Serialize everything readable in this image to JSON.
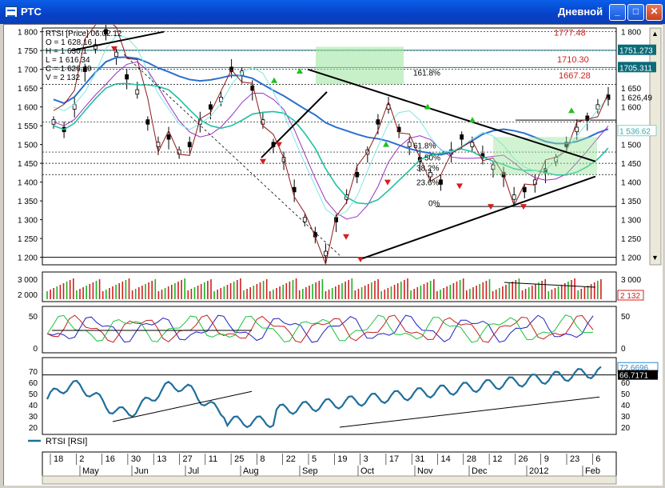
{
  "window": {
    "title": "РТС",
    "mode": "Дневной"
  },
  "price_panel": {
    "legend": [
      "RTSI [Price] 06.02.12",
      "O = 1 628,16",
      "H = 1 630,1",
      "L = 1 616,34",
      "C = 1 626,49",
      "V = 2 132"
    ],
    "y_ticks": [
      "1 800",
      "1 750",
      "1 700",
      "1 650",
      "1 600",
      "1 550",
      "1 500",
      "1 450",
      "1 400",
      "1 350",
      "1 300",
      "1 250",
      "1 200"
    ],
    "right_values": [
      {
        "text": "1 800",
        "style": "plain"
      },
      {
        "text": "1751.273",
        "style": "teal"
      },
      {
        "text": "1705.311",
        "style": "teal"
      },
      {
        "text": "1 650",
        "style": "plain"
      },
      {
        "text": "1 626,49",
        "style": "plain"
      },
      {
        "text": "1 600",
        "style": "plain"
      },
      {
        "text": "1 536.62",
        "style": "light"
      },
      {
        "text": "1 500",
        "style": "plain"
      },
      {
        "text": "1 450",
        "style": "plain"
      },
      {
        "text": "1 400",
        "style": "plain"
      },
      {
        "text": "1 350",
        "style": "plain"
      },
      {
        "text": "1 300",
        "style": "plain"
      },
      {
        "text": "1 250",
        "style": "plain"
      },
      {
        "text": "1 200",
        "style": "plain"
      }
    ],
    "annotations": [
      "1777.48",
      "1710.30",
      "1667.28",
      "161.8%",
      "61.8%",
      "50%",
      "38.2%",
      "23.6%",
      "0%"
    ]
  },
  "volume_panel": {
    "y_ticks": [
      "3 000",
      "2 000"
    ],
    "right_values": [
      "3 000",
      "2 132"
    ]
  },
  "osc_panel": {
    "y_ticks": [
      "50",
      "0"
    ],
    "right_values": [
      "50",
      "0"
    ]
  },
  "rsi_panel": {
    "y_ticks": [
      "70",
      "60",
      "50",
      "40",
      "30",
      "20"
    ],
    "right_values": [
      "72.6696",
      "66.7171",
      "60",
      "50",
      "40",
      "30",
      "20"
    ],
    "legend": "RTSI [RSI]"
  },
  "time_axis": {
    "days": [
      "18",
      "2",
      "16",
      "30",
      "13",
      "27",
      "11",
      "25",
      "8",
      "22",
      "5",
      "19",
      "3",
      "17",
      "31",
      "14",
      "28",
      "12",
      "26",
      "9",
      "23",
      "6"
    ],
    "months": [
      "May",
      "Jun",
      "Jul",
      "Aug",
      "Sep",
      "Oct",
      "Nov",
      "Dec",
      "2012",
      "Feb"
    ]
  },
  "colors": {
    "accent": "#0a5ee8",
    "teal_badge": "#0b6b78",
    "red_text": "#cc2020"
  },
  "icons": [
    "app-icon",
    "minimize-icon",
    "maximize-icon",
    "close-icon"
  ],
  "chart_data": {
    "type": "line",
    "title": "RTSI [Price] 06.02.12",
    "ylim": [
      1180,
      1810
    ],
    "series": [
      {
        "name": "RTSI [Price]",
        "values": [
          1560,
          1540,
          1600,
          1700,
          1760,
          1800,
          1740,
          1680,
          1640,
          1560,
          1500,
          1520,
          1480,
          1500,
          1560,
          1600,
          1620,
          1700,
          1690,
          1650,
          1560,
          1500,
          1460,
          1380,
          1300,
          1260,
          1210,
          1300,
          1360,
          1420,
          1480,
          1560,
          1600,
          1540,
          1500,
          1460,
          1420,
          1400,
          1480,
          1520,
          1500,
          1470,
          1440,
          1420,
          1360,
          1380,
          1400,
          1430,
          1460,
          1500,
          1540,
          1570,
          1600,
          1626
        ]
      }
    ]
  }
}
